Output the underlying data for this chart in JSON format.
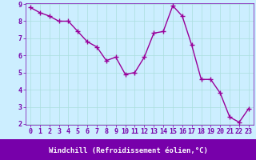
{
  "x": [
    0,
    1,
    2,
    3,
    4,
    5,
    6,
    7,
    8,
    9,
    10,
    11,
    12,
    13,
    14,
    15,
    16,
    17,
    18,
    19,
    20,
    21,
    22,
    23
  ],
  "y": [
    8.8,
    8.5,
    8.3,
    8.0,
    8.0,
    7.4,
    6.8,
    6.5,
    5.7,
    5.9,
    4.9,
    5.0,
    5.9,
    7.3,
    7.4,
    8.9,
    8.3,
    6.6,
    4.6,
    4.6,
    3.8,
    2.4,
    2.1,
    2.9
  ],
  "line_color": "#990099",
  "marker": "+",
  "markersize": 4,
  "linewidth": 1.0,
  "xlabel": "Windchill (Refroidissement éolien,°C)",
  "xlabel_fontsize": 6.5,
  "plot_bg_color": "#cceeff",
  "fig_bg_color": "#cceeff",
  "bottom_bar_color": "#7700aa",
  "grid_color": "#aadddd",
  "tick_label_fontsize": 6.0,
  "tick_color": "#7700aa",
  "ylim": [
    2,
    9
  ],
  "xlim": [
    -0.5,
    23.5
  ],
  "yticks": [
    2,
    3,
    4,
    5,
    6,
    7,
    8,
    9
  ],
  "xticks": [
    0,
    1,
    2,
    3,
    4,
    5,
    6,
    7,
    8,
    9,
    10,
    11,
    12,
    13,
    14,
    15,
    16,
    17,
    18,
    19,
    20,
    21,
    22,
    23
  ]
}
